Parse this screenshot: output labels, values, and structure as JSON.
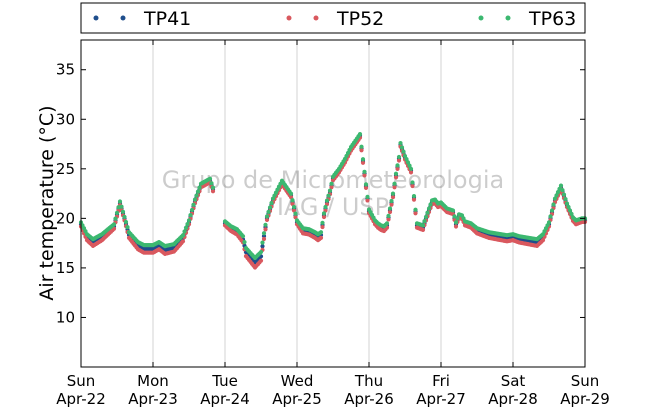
{
  "chart_data": {
    "type": "scatter",
    "title": "",
    "xlabel": "",
    "ylabel": "Air temperature (°C)",
    "ylim": [
      5,
      38
    ],
    "yticks": [
      10,
      15,
      20,
      25,
      30,
      35
    ],
    "xlim": [
      "2012-04-22 00:00",
      "2012-04-29 00:00"
    ],
    "x_ticks": [
      {
        "day": "Sun",
        "date": "Apr-22"
      },
      {
        "day": "Mon",
        "date": "Apr-23"
      },
      {
        "day": "Tue",
        "date": "Apr-24"
      },
      {
        "day": "Wed",
        "date": "Apr-25"
      },
      {
        "day": "Thu",
        "date": "Apr-26"
      },
      {
        "day": "Fri",
        "date": "Apr-27"
      },
      {
        "day": "Sat",
        "date": "Apr-28"
      },
      {
        "day": "Sun",
        "date": "Apr-29"
      }
    ],
    "grid": "vertical",
    "legend_position": "top",
    "watermark": [
      "Grupo de Micrometeorologia",
      "IAG / USP"
    ],
    "series": [
      {
        "name": "TP41",
        "color": "#1f4e8c",
        "offset": -0.3,
        "gap_offset": -0.5
      },
      {
        "name": "TP52",
        "color": "#d9585e",
        "offset": -0.6,
        "gap_offset": 0.2
      },
      {
        "name": "TP63",
        "color": "#3cb870",
        "offset": 0.0,
        "gap_offset": 0.0
      }
    ],
    "base_curve": {
      "hours": [
        0,
        2,
        4,
        7,
        11,
        13,
        16,
        19,
        21,
        24,
        26,
        28,
        31,
        34,
        36,
        38,
        40,
        43,
        44,
        48,
        50,
        52,
        54,
        55,
        58,
        60,
        61,
        62,
        64,
        67,
        70,
        72,
        74,
        76,
        78,
        79,
        80,
        81,
        82,
        83,
        84,
        86,
        88,
        90,
        93,
        96,
        98,
        99,
        100,
        101,
        102,
        104,
        105,
        106,
        106.5,
        108,
        110,
        112,
        114,
        116,
        117,
        118,
        119,
        120,
        122,
        124,
        125,
        126,
        127,
        128,
        130,
        132,
        134,
        136,
        138,
        140,
        142,
        144,
        146,
        148,
        150,
        152,
        154,
        156,
        158,
        160,
        162,
        164,
        165,
        166,
        167,
        168
      ],
      "values": [
        19.6,
        18.4,
        17.9,
        18.4,
        19.4,
        21.7,
        18.6,
        17.6,
        17.3,
        17.3,
        17.6,
        17.2,
        17.4,
        18.3,
        19.8,
        21.9,
        23.5,
        24.0,
        23.1,
        19.7,
        19.2,
        18.9,
        18.2,
        17.0,
        16.0,
        16.6,
        18.5,
        20.2,
        22.0,
        23.8,
        22.5,
        19.8,
        19.0,
        18.9,
        18.6,
        18.4,
        18.6,
        20.5,
        21.8,
        22.8,
        24.2,
        25.0,
        26.0,
        27.2,
        28.5,
        20.9,
        19.8,
        19.5,
        19.3,
        19.2,
        19.5,
        22.5,
        24.5,
        26.2,
        27.6,
        26.3,
        25.0,
        19.5,
        19.3,
        21.0,
        21.8,
        21.9,
        21.5,
        21.6,
        21.0,
        20.8,
        19.6,
        20.4,
        20.3,
        19.7,
        19.5,
        19.0,
        18.8,
        18.6,
        18.5,
        18.4,
        18.3,
        18.4,
        18.2,
        18.1,
        18.0,
        17.9,
        18.4,
        19.6,
        22.0,
        23.3,
        21.5,
        20.1,
        19.8,
        19.9,
        20.0,
        20.0
      ]
    },
    "gaps_hours": [
      [
        44,
        48
      ]
    ]
  }
}
